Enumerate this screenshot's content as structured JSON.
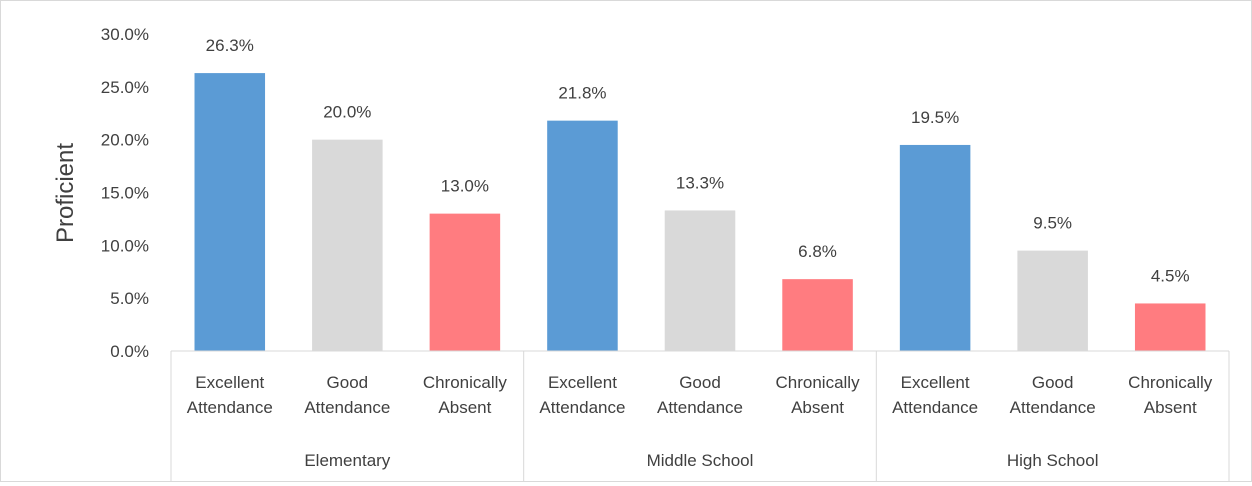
{
  "chart_data": {
    "type": "bar",
    "title": "",
    "xlabel": "",
    "ylabel": "Proficient",
    "ylim": [
      0,
      30
    ],
    "yticks": [
      "0.0%",
      "5.0%",
      "10.0%",
      "15.0%",
      "20.0%",
      "25.0%",
      "30.0%"
    ],
    "grid": false,
    "legend": "none",
    "groups": [
      {
        "name": "Elementary",
        "bars": [
          {
            "label": [
              "Excellent",
              "Attendance"
            ],
            "value": 26.3,
            "data_label": "26.3%",
            "color": "#5b9bd5"
          },
          {
            "label": [
              "Good",
              "Attendance"
            ],
            "value": 20.0,
            "data_label": "20.0%",
            "color": "#d9d9d9"
          },
          {
            "label": [
              "Chronically",
              "Absent"
            ],
            "value": 13.0,
            "data_label": "13.0%",
            "color": "#ff7c80"
          }
        ]
      },
      {
        "name": "Middle School",
        "bars": [
          {
            "label": [
              "Excellent",
              "Attendance"
            ],
            "value": 21.8,
            "data_label": "21.8%",
            "color": "#5b9bd5"
          },
          {
            "label": [
              "Good",
              "Attendance"
            ],
            "value": 13.3,
            "data_label": "13.3%",
            "color": "#d9d9d9"
          },
          {
            "label": [
              "Chronically",
              "Absent"
            ],
            "value": 6.8,
            "data_label": "6.8%",
            "color": "#ff7c80"
          }
        ]
      },
      {
        "name": "High School",
        "bars": [
          {
            "label": [
              "Excellent",
              "Attendance"
            ],
            "value": 19.5,
            "data_label": "19.5%",
            "color": "#5b9bd5"
          },
          {
            "label": [
              "Good",
              "Attendance"
            ],
            "value": 9.5,
            "data_label": "9.5%",
            "color": "#d9d9d9"
          },
          {
            "label": [
              "Chronically",
              "Absent"
            ],
            "value": 4.5,
            "data_label": "4.5%",
            "color": "#ff7c80"
          }
        ]
      }
    ]
  }
}
